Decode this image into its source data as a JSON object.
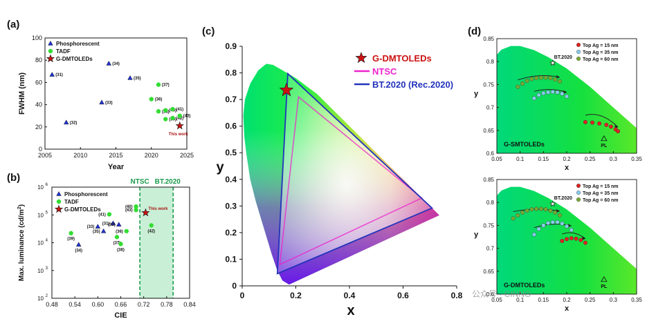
{
  "chart_data": [
    {
      "panel": "(a)",
      "type": "scatter",
      "xlabel": "Year",
      "ylabel": "FWHM (nm)",
      "xlim": [
        2005,
        2025
      ],
      "ylim": [
        0,
        100
      ],
      "xticks": [
        "2005",
        "2010",
        "2015",
        "2020",
        "2025"
      ],
      "yticks": [
        "0",
        "20",
        "40",
        "60",
        "80",
        "100"
      ],
      "legend": "top-left",
      "series": [
        {
          "name": "Phosphorescent",
          "marker": "triangle",
          "color": "#2233cc",
          "points": [
            {
              "x": 2006,
              "y": 67,
              "label": "(31)"
            },
            {
              "x": 2008,
              "y": 24,
              "label": "(32)"
            },
            {
              "x": 2013,
              "y": 42,
              "label": "(33)"
            },
            {
              "x": 2014,
              "y": 77,
              "label": "(34)"
            },
            {
              "x": 2017,
              "y": 64,
              "label": "(35)"
            }
          ]
        },
        {
          "name": "TADF",
          "marker": "circle",
          "color": "#33dd33",
          "points": [
            {
              "x": 2020,
              "y": 45,
              "label": "(36)"
            },
            {
              "x": 2021,
              "y": 58,
              "label": "(37)"
            },
            {
              "x": 2021,
              "y": 34,
              "label": "(38)"
            },
            {
              "x": 2022,
              "y": 27,
              "label": "(39)"
            },
            {
              "x": 2022,
              "y": 35,
              "label": "(40)"
            },
            {
              "x": 2023,
              "y": 36,
              "label": "(41)"
            },
            {
              "x": 2023,
              "y": 28,
              "label": "(42)"
            },
            {
              "x": 2024,
              "y": 30,
              "label": "(43)"
            }
          ]
        },
        {
          "name": "G-DMTOLEDs",
          "marker": "star",
          "color": "#cc1111",
          "points": [
            {
              "x": 2024,
              "y": 21,
              "label": "This work"
            }
          ]
        }
      ]
    },
    {
      "panel": "(b)",
      "type": "scatter",
      "xlabel": "CIE",
      "ylabel": "Max. luminance (cd/m",
      "ylabel_sup": "2",
      "ylabel_end": ")",
      "xlim": [
        0.48,
        0.84
      ],
      "ylim_log": [
        2,
        6
      ],
      "xticks": [
        "0.48",
        "0.54",
        "0.60",
        "0.66",
        "0.72",
        "0.78",
        "0.84"
      ],
      "ytick_base": "10",
      "ytick_exps": [
        "2",
        "3",
        "4",
        "5",
        "6"
      ],
      "legend": "top-left",
      "regions": [
        {
          "label": "NTSC",
          "x": 0.71
        },
        {
          "label": "BT.2020",
          "x": 0.797
        }
      ],
      "series": [
        {
          "name": "Phosphorescent",
          "marker": "triangle",
          "color": "#2233cc",
          "points": [
            {
              "x": 0.55,
              "y": 8500,
              "label": "(34)"
            },
            {
              "x": 0.6,
              "y": 38000,
              "label": "(33)"
            },
            {
              "x": 0.615,
              "y": 26000,
              "label": "(35)"
            },
            {
              "x": 0.64,
              "y": 50000,
              "label": "(31)"
            },
            {
              "x": 0.655,
              "y": 45000,
              "label": "(32)"
            }
          ]
        },
        {
          "name": "TADF",
          "marker": "circle",
          "color": "#33dd33",
          "points": [
            {
              "x": 0.53,
              "y": 22000,
              "label": "(39)"
            },
            {
              "x": 0.63,
              "y": 105000,
              "label": "(41)"
            },
            {
              "x": 0.65,
              "y": 16000,
              "label": "(37)"
            },
            {
              "x": 0.66,
              "y": 9000,
              "label": "(38)"
            },
            {
              "x": 0.675,
              "y": 26000,
              "label": "(36)"
            },
            {
              "x": 0.7,
              "y": 200000,
              "label": "(40)"
            },
            {
              "x": 0.7,
              "y": 150000,
              "label": "(43)"
            },
            {
              "x": 0.74,
              "y": 42000,
              "label": "(42)"
            }
          ]
        },
        {
          "name": "G-DMTOLEDs",
          "marker": "star",
          "color": "#cc1111",
          "points": [
            {
              "x": 0.725,
              "y": 120000,
              "label": "This work"
            }
          ]
        }
      ]
    },
    {
      "panel": "(c)",
      "type": "scatter",
      "xlabel": "x",
      "ylabel": "y",
      "xlim": [
        0,
        0.8
      ],
      "ylim": [
        0,
        0.9
      ],
      "xticks": [
        "0",
        "0.2",
        "0.4",
        "0.6",
        "0.8"
      ],
      "yticks": [
        "0",
        "0.1",
        "0.2",
        "0.3",
        "0.4",
        "0.5",
        "0.6",
        "0.7",
        "0.8",
        "0.9"
      ],
      "legend": "top-right",
      "series": [
        {
          "name": "G-DMTOLEDs",
          "color": "#cc1111",
          "points": [
            {
              "x": 0.165,
              "y": 0.735
            }
          ]
        },
        {
          "name": "NTSC",
          "color": "#ee22cc",
          "points": [
            {
              "x": 0.21,
              "y": 0.71
            },
            {
              "x": 0.67,
              "y": 0.33
            },
            {
              "x": 0.14,
              "y": 0.08
            }
          ]
        },
        {
          "name": "BT.2020 (Rec.2020)",
          "color": "#2233bb",
          "points": [
            {
              "x": 0.17,
              "y": 0.797
            },
            {
              "x": 0.708,
              "y": 0.292
            },
            {
              "x": 0.131,
              "y": 0.046
            }
          ]
        }
      ]
    },
    {
      "panel": "(d)",
      "type": "scatter",
      "subplots": [
        {
          "name": "G-SMTOLEDs",
          "xlabel": "x",
          "ylabel": "y",
          "xlim": [
            0.05,
            0.35
          ],
          "ylim": [
            0.6,
            0.85
          ],
          "xticks": [
            "0.05",
            "0.1",
            "0.15",
            "0.2",
            "0.25",
            "0.3",
            "0.35"
          ],
          "yticks": [
            "0.6",
            "0.65",
            "0.7",
            "0.75",
            "0.8",
            "0.85"
          ],
          "annotations": [
            {
              "text": "BT.2020",
              "x": 0.17,
              "y": 0.797
            },
            {
              "text": "PL",
              "x": 0.28,
              "y": 0.632
            }
          ],
          "series": [
            {
              "name": "Top Ag = 15 nm",
              "color": "#dd2222",
              "x": [
                0.24,
                0.255,
                0.27,
                0.285,
                0.295,
                0.305,
                0.31
              ],
              "y": [
                0.668,
                0.667,
                0.665,
                0.662,
                0.658,
                0.652,
                0.648
              ]
            },
            {
              "name": "Top Ag = 35 nm",
              "color": "#88ccee",
              "x": [
                0.13,
                0.14,
                0.15,
                0.16,
                0.17,
                0.18,
                0.19,
                0.2
              ],
              "y": [
                0.72,
                0.727,
                0.731,
                0.733,
                0.734,
                0.733,
                0.73,
                0.724
              ]
            },
            {
              "name": "Top Ag = 60 nm",
              "color": "#77aa33",
              "x": [
                0.095,
                0.105,
                0.115,
                0.125,
                0.135,
                0.145,
                0.155,
                0.165,
                0.175,
                0.185
              ],
              "y": [
                0.745,
                0.752,
                0.758,
                0.762,
                0.764,
                0.765,
                0.765,
                0.764,
                0.761,
                0.757
              ]
            }
          ]
        },
        {
          "name": "G-DMTOLEDs",
          "xlabel": "x",
          "ylabel": "y",
          "xlim": [
            0.05,
            0.35
          ],
          "ylim": [
            0.6,
            0.85
          ],
          "xticks": [
            "0.05",
            "0.1",
            "0.15",
            "0.2",
            "0.25",
            "0.3",
            "0.35"
          ],
          "yticks": [
            "0.6",
            "0.65",
            "0.7",
            "0.75",
            "0.8",
            "0.85"
          ],
          "annotations": [
            {
              "text": "BT.2020",
              "x": 0.17,
              "y": 0.797
            },
            {
              "text": "PL",
              "x": 0.28,
              "y": 0.632
            }
          ],
          "series": [
            {
              "name": "Top Ag = 15 nm",
              "color": "#dd2222",
              "x": [
                0.19,
                0.2,
                0.21,
                0.22,
                0.23,
                0.24
              ],
              "y": [
                0.716,
                0.72,
                0.722,
                0.721,
                0.718,
                0.712
              ]
            },
            {
              "name": "Top Ag = 35 nm",
              "color": "#88ccee",
              "x": [
                0.13,
                0.14,
                0.15,
                0.16,
                0.17,
                0.18,
                0.19,
                0.2,
                0.21
              ],
              "y": [
                0.73,
                0.742,
                0.75,
                0.755,
                0.757,
                0.757,
                0.754,
                0.748,
                0.74
              ]
            },
            {
              "name": "Top Ag = 60 nm",
              "color": "#77aa33",
              "x": [
                0.085,
                0.095,
                0.105,
                0.115,
                0.125,
                0.135,
                0.145,
                0.155,
                0.165,
                0.175,
                0.185
              ],
              "y": [
                0.765,
                0.772,
                0.778,
                0.782,
                0.785,
                0.786,
                0.786,
                0.785,
                0.782,
                0.778,
                0.772
              ]
            }
          ]
        }
      ]
    }
  ],
  "watermark": "公众号 · CINNO"
}
